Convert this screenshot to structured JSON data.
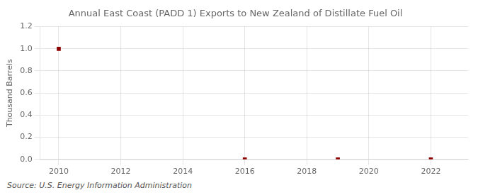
{
  "chart_data": {
    "type": "scatter",
    "title": "Annual East Coast (PADD 1) Exports to New Zealand of Distillate Fuel Oil",
    "y_label": "Thousand Barrels",
    "annotations": [
      "Source: U.S. Energy Information Administration"
    ],
    "x": [
      2010,
      2016,
      2019,
      2022
    ],
    "values": [
      1.0,
      0.0,
      0.0,
      0.0
    ],
    "color": "#8b0000",
    "marker": "square",
    "xlim": [
      2009.4,
      2023.2
    ],
    "ylim": [
      0.0,
      1.2
    ],
    "xticks": [
      2010,
      2012,
      2014,
      2016,
      2018,
      2020,
      2022
    ],
    "yticks": [
      {
        "value": 0.0,
        "label": "0.0"
      },
      0.2,
      0.4,
      0.6,
      0.8,
      {
        "value": 1.0,
        "label": "1.0"
      },
      1.2
    ],
    "grid": true
  }
}
